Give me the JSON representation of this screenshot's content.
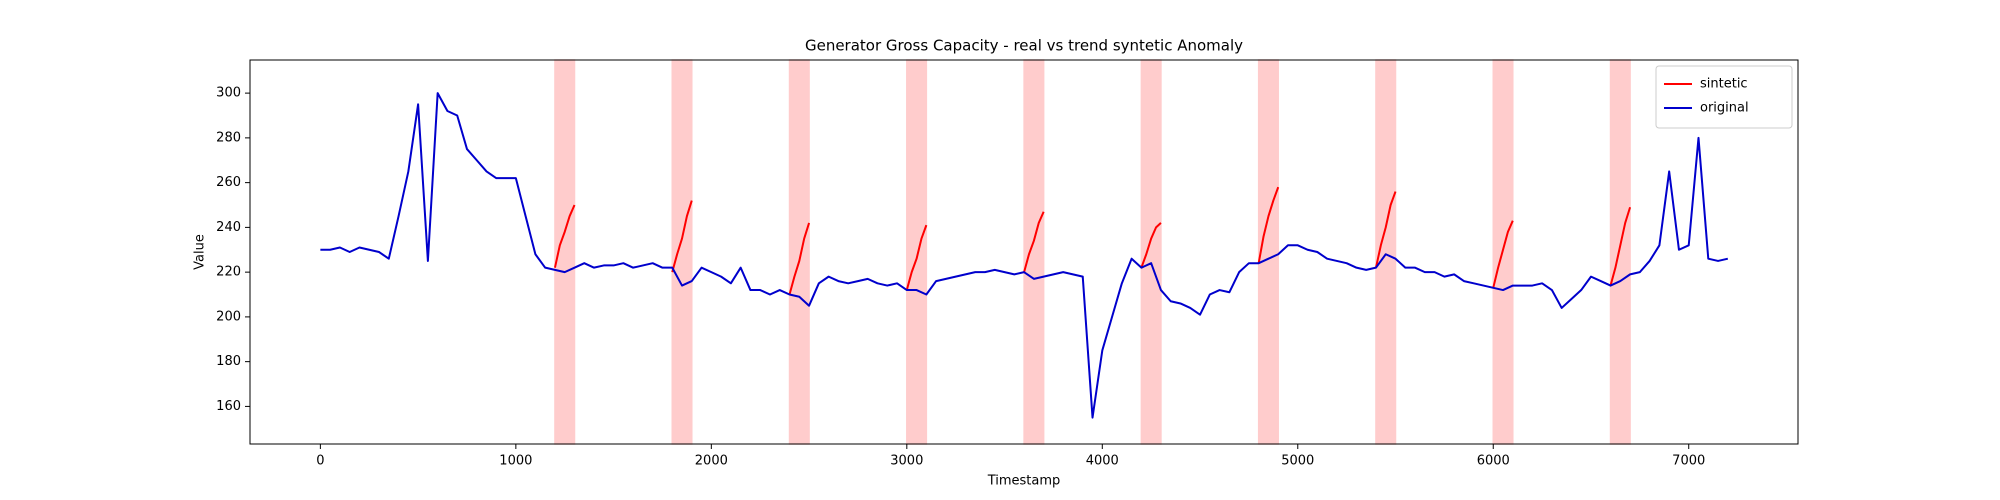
{
  "chart_data": {
    "type": "line",
    "title": "Generator Gross Capacity - real vs trend syntetic Anomaly",
    "x_label": "Timestamp",
    "y_label": "Value",
    "xlim": [
      -360,
      7559
    ],
    "ylim": [
      143.2,
      314.8
    ],
    "xticks": [
      0,
      1000,
      2000,
      3000,
      4000,
      5000,
      6000,
      7000
    ],
    "yticks": [
      160,
      180,
      200,
      220,
      240,
      260,
      280,
      300
    ],
    "legend": "upper right",
    "highlight_spans": [
      [
        1200,
        1300
      ],
      [
        1800,
        1900
      ],
      [
        2400,
        2500
      ],
      [
        3000,
        3100
      ],
      [
        3600,
        3700
      ],
      [
        4200,
        4300
      ],
      [
        4800,
        4900
      ],
      [
        5400,
        5500
      ],
      [
        6000,
        6100
      ],
      [
        6600,
        6700
      ]
    ],
    "span_color": "#ffcccc",
    "series": [
      {
        "name": "sintetic",
        "color": "#ff0000",
        "x": [
          1200,
          1225,
          1250,
          1275,
          1300,
          1350,
          1800,
          1825,
          1850,
          1875,
          1900,
          1950,
          2400,
          2425,
          2450,
          2475,
          2500,
          2550,
          3000,
          3025,
          3050,
          3075,
          3100,
          3150,
          3600,
          3625,
          3650,
          3675,
          3700,
          3750,
          4200,
          4225,
          4250,
          4275,
          4300,
          4350,
          4800,
          4825,
          4850,
          4875,
          4900,
          4950,
          5400,
          5425,
          5450,
          5475,
          5500,
          5550,
          6000,
          6025,
          6050,
          6075,
          6100,
          6150,
          6600,
          6625,
          6650,
          6675,
          6700
        ],
        "values": [
          222,
          232,
          238,
          245,
          250,
          null,
          220,
          228,
          235,
          245,
          252,
          null,
          210,
          218,
          225,
          235,
          242,
          null,
          212,
          220,
          226,
          235,
          241,
          null,
          220,
          228,
          234,
          242,
          247,
          null,
          222,
          228,
          235,
          240,
          242,
          null,
          224,
          236,
          245,
          252,
          258,
          null,
          222,
          232,
          240,
          250,
          256,
          null,
          213,
          222,
          230,
          238,
          243,
          null,
          214,
          222,
          232,
          242,
          249
        ]
      },
      {
        "name": "original",
        "color": "#0000cc",
        "x": [
          0,
          50,
          100,
          150,
          200,
          250,
          300,
          350,
          400,
          450,
          500,
          550,
          600,
          650,
          700,
          750,
          800,
          850,
          900,
          950,
          1000,
          1050,
          1100,
          1150,
          1200,
          1250,
          1300,
          1350,
          1400,
          1450,
          1500,
          1550,
          1600,
          1650,
          1700,
          1750,
          1800,
          1850,
          1900,
          1950,
          2000,
          2050,
          2100,
          2150,
          2200,
          2250,
          2300,
          2350,
          2400,
          2450,
          2500,
          2550,
          2600,
          2650,
          2700,
          2750,
          2800,
          2850,
          2900,
          2950,
          3000,
          3050,
          3100,
          3150,
          3200,
          3250,
          3300,
          3350,
          3400,
          3450,
          3500,
          3550,
          3600,
          3650,
          3700,
          3750,
          3800,
          3850,
          3900,
          3950,
          4000,
          4050,
          4100,
          4150,
          4200,
          4250,
          4300,
          4350,
          4400,
          4450,
          4500,
          4550,
          4600,
          4650,
          4700,
          4750,
          4800,
          4850,
          4900,
          4950,
          5000,
          5050,
          5100,
          5150,
          5200,
          5250,
          5300,
          5350,
          5400,
          5450,
          5500,
          5550,
          5600,
          5650,
          5700,
          5750,
          5800,
          5850,
          5900,
          5950,
          6000,
          6050,
          6100,
          6150,
          6200,
          6250,
          6300,
          6350,
          6400,
          6450,
          6500,
          6550,
          6600,
          6650,
          6700,
          6750,
          6800,
          6850,
          6900,
          6950,
          7000,
          7050,
          7100,
          7150,
          7200
        ],
        "values": [
          230,
          230,
          231,
          229,
          231,
          230,
          229,
          226,
          245,
          265,
          295,
          225,
          300,
          292,
          290,
          275,
          270,
          265,
          262,
          262,
          262,
          245,
          228,
          222,
          221,
          220,
          222,
          224,
          222,
          223,
          223,
          224,
          222,
          223,
          224,
          222,
          222,
          214,
          216,
          222,
          220,
          218,
          215,
          222,
          212,
          212,
          210,
          212,
          210,
          209,
          205,
          215,
          218,
          216,
          215,
          216,
          217,
          215,
          214,
          215,
          212,
          212,
          210,
          216,
          217,
          218,
          219,
          220,
          220,
          221,
          220,
          219,
          220,
          217,
          218,
          219,
          220,
          219,
          218,
          155,
          185,
          200,
          215,
          226,
          222,
          224,
          212,
          207,
          206,
          204,
          201,
          210,
          212,
          211,
          220,
          224,
          224,
          226,
          228,
          232,
          232,
          230,
          229,
          226,
          225,
          224,
          222,
          221,
          222,
          228,
          226,
          222,
          222,
          220,
          220,
          218,
          219,
          216,
          215,
          214,
          213,
          212,
          214,
          214,
          214,
          215,
          212,
          204,
          208,
          212,
          218,
          216,
          214,
          216,
          219,
          220,
          225,
          232,
          265,
          230,
          232,
          280,
          226,
          225,
          226
        ]
      }
    ]
  }
}
